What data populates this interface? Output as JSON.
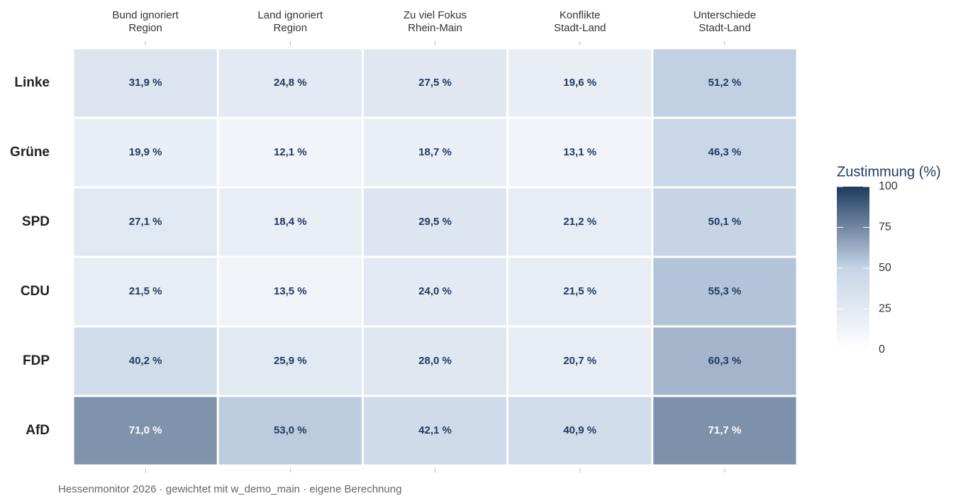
{
  "chart_data": {
    "type": "heatmap",
    "x_categories": [
      "Bund ignoriert\nRegion",
      "Land ignoriert\nRegion",
      "Zu viel Fokus\nRhein-Main",
      "Konflikte\nStadt-Land",
      "Unterschiede\nStadt-Land"
    ],
    "y_categories": [
      "Linke",
      "Grüne",
      "SPD",
      "CDU",
      "FDP",
      "AfD"
    ],
    "values": [
      [
        31.9,
        24.8,
        27.5,
        19.6,
        51.2
      ],
      [
        19.9,
        12.1,
        18.7,
        13.1,
        46.3
      ],
      [
        27.1,
        18.4,
        29.5,
        21.2,
        50.1
      ],
      [
        21.5,
        13.5,
        24.0,
        21.5,
        55.3
      ],
      [
        40.2,
        25.9,
        28.0,
        20.7,
        60.3
      ],
      [
        71.0,
        53.0,
        42.1,
        40.9,
        71.7
      ]
    ],
    "value_labels": [
      [
        "31,9 %",
        "24,8 %",
        "27,5 %",
        "19,6 %",
        "51,2 %"
      ],
      [
        "19,9 %",
        "12,1 %",
        "18,7 %",
        "13,1 %",
        "46,3 %"
      ],
      [
        "27,1 %",
        "18,4 %",
        "29,5 %",
        "21,2 %",
        "50,1 %"
      ],
      [
        "21,5 %",
        "13,5 %",
        "24,0 %",
        "21,5 %",
        "55,3 %"
      ],
      [
        "40,2 %",
        "25,9 %",
        "28,0 %",
        "20,7 %",
        "60,3 %"
      ],
      [
        "71,0 %",
        "53,0 %",
        "42,1 %",
        "40,9 %",
        "71,7 %"
      ]
    ],
    "colors": [
      "#ffffff",
      "#c6d4e6",
      "#1f3a5f"
    ],
    "zlim": [
      0,
      100
    ],
    "zticks": [
      0,
      25,
      50,
      75,
      100
    ],
    "legend_title": "Zustimmung (%)",
    "caption": "Hessenmonitor 2026 · gewichtet mit w_demo_main · eigene Berechnung"
  }
}
